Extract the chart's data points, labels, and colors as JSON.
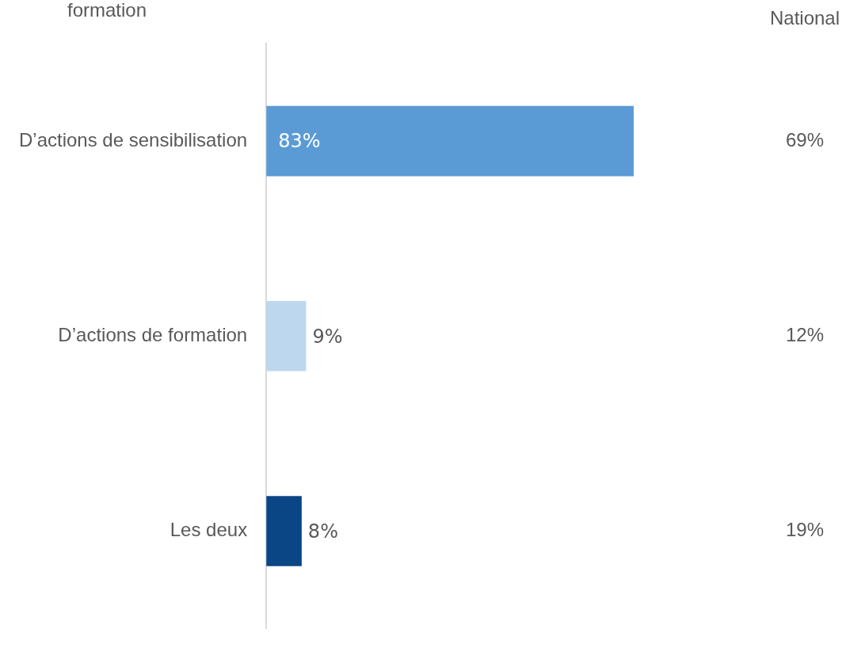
{
  "chart_data": {
    "type": "bar",
    "orientation": "horizontal",
    "categories": [
      "D’actions de sensibilisation",
      "D’actions de formation",
      "Les deux"
    ],
    "values": [
      83,
      9,
      8
    ],
    "colors": [
      "#5b9bd5",
      "#bdd7ee",
      "#0a4586"
    ],
    "value_labels": [
      "83%",
      "9%",
      "8%"
    ],
    "annotations": [
      "formation",
      "National",
      "69%",
      "12%",
      "19%"
    ]
  }
}
